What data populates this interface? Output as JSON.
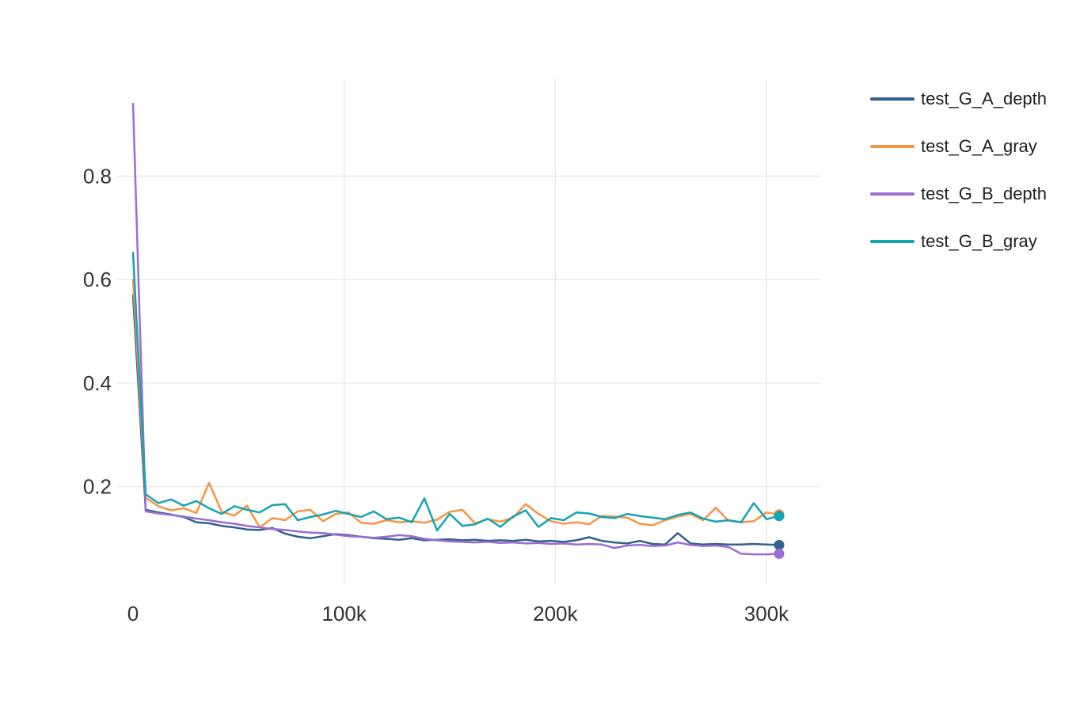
{
  "page": {
    "background": "#ffffff"
  },
  "colors": {
    "grid": "#e9e9e9",
    "tick_text": "#333333",
    "legend_text": "#1f1f1f"
  },
  "legend": {
    "position": "right",
    "items": [
      {
        "label": "test_G_A_depth",
        "color": "#31618c"
      },
      {
        "label": "test_G_A_gray",
        "color": "#f79444"
      },
      {
        "label": "test_G_B_depth",
        "color": "#9b6dd0"
      },
      {
        "label": "test_G_B_gray",
        "color": "#14a4b2"
      }
    ]
  },
  "axes": {
    "x_ticks": [
      {
        "label": "0",
        "value": 0
      },
      {
        "label": "100k",
        "value": 100000
      },
      {
        "label": "200k",
        "value": 200000
      },
      {
        "label": "300k",
        "value": 300000
      }
    ],
    "y_ticks": [
      {
        "label": "0.2",
        "value": 0.2
      },
      {
        "label": "0.4",
        "value": 0.4
      },
      {
        "label": "0.6",
        "value": 0.6
      },
      {
        "label": "0.8",
        "value": 0.8
      }
    ]
  },
  "chart_data": {
    "type": "line",
    "title": "",
    "xlabel": "",
    "ylabel": "",
    "grid": true,
    "legend_position": "right",
    "end_markers": true,
    "xlim": [
      -8000,
      326000
    ],
    "ylim": [
      0.01,
      0.99
    ],
    "x": [
      0,
      6000,
      12000,
      18000,
      24000,
      30000,
      36000,
      42000,
      48000,
      54000,
      60000,
      66000,
      72000,
      78000,
      84000,
      90000,
      96000,
      102000,
      108000,
      114000,
      120000,
      126000,
      132000,
      138000,
      144000,
      150000,
      156000,
      162000,
      168000,
      174000,
      180000,
      186000,
      192000,
      198000,
      204000,
      210000,
      216000,
      222000,
      228000,
      234000,
      240000,
      246000,
      252000,
      258000,
      264000,
      270000,
      276000,
      282000,
      288000,
      294000,
      300000,
      306000
    ],
    "series": [
      {
        "name": "test_G_A_depth",
        "color": "#31618c",
        "final_value": 0.087,
        "values": [
          0.57,
          0.155,
          0.15,
          0.146,
          0.141,
          0.131,
          0.129,
          0.124,
          0.121,
          0.117,
          0.116,
          0.12,
          0.109,
          0.103,
          0.1,
          0.104,
          0.108,
          0.106,
          0.103,
          0.1,
          0.099,
          0.097,
          0.1,
          0.096,
          0.097,
          0.098,
          0.096,
          0.097,
          0.095,
          0.096,
          0.095,
          0.097,
          0.094,
          0.095,
          0.093,
          0.096,
          0.102,
          0.095,
          0.092,
          0.09,
          0.095,
          0.089,
          0.088,
          0.11,
          0.09,
          0.088,
          0.089,
          0.088,
          0.088,
          0.089,
          0.088,
          0.087
        ]
      },
      {
        "name": "test_G_A_gray",
        "color": "#f79444",
        "final_value": 0.146,
        "values": [
          0.6,
          0.178,
          0.162,
          0.154,
          0.158,
          0.149,
          0.207,
          0.151,
          0.144,
          0.163,
          0.121,
          0.139,
          0.135,
          0.152,
          0.155,
          0.133,
          0.147,
          0.15,
          0.13,
          0.128,
          0.135,
          0.131,
          0.133,
          0.13,
          0.136,
          0.151,
          0.155,
          0.129,
          0.137,
          0.132,
          0.14,
          0.166,
          0.147,
          0.133,
          0.128,
          0.131,
          0.127,
          0.143,
          0.142,
          0.14,
          0.128,
          0.125,
          0.135,
          0.142,
          0.147,
          0.135,
          0.159,
          0.134,
          0.131,
          0.133,
          0.15,
          0.146
        ]
      },
      {
        "name": "test_G_B_depth",
        "color": "#9b6dd0",
        "final_value": 0.07,
        "values": [
          0.94,
          0.152,
          0.148,
          0.145,
          0.142,
          0.138,
          0.135,
          0.131,
          0.128,
          0.124,
          0.121,
          0.118,
          0.116,
          0.113,
          0.111,
          0.11,
          0.107,
          0.104,
          0.103,
          0.101,
          0.103,
          0.106,
          0.104,
          0.099,
          0.096,
          0.094,
          0.093,
          0.092,
          0.093,
          0.091,
          0.092,
          0.09,
          0.091,
          0.089,
          0.09,
          0.088,
          0.089,
          0.088,
          0.081,
          0.086,
          0.087,
          0.085,
          0.086,
          0.092,
          0.087,
          0.085,
          0.086,
          0.083,
          0.07,
          0.069,
          0.069,
          0.07
        ]
      },
      {
        "name": "test_G_B_gray",
        "color": "#14a4b2",
        "final_value": 0.143,
        "values": [
          0.652,
          0.185,
          0.168,
          0.175,
          0.163,
          0.172,
          0.158,
          0.147,
          0.162,
          0.155,
          0.15,
          0.164,
          0.166,
          0.135,
          0.141,
          0.146,
          0.153,
          0.147,
          0.141,
          0.152,
          0.137,
          0.14,
          0.131,
          0.177,
          0.115,
          0.147,
          0.124,
          0.127,
          0.138,
          0.122,
          0.142,
          0.154,
          0.122,
          0.139,
          0.135,
          0.15,
          0.148,
          0.141,
          0.139,
          0.147,
          0.143,
          0.14,
          0.137,
          0.145,
          0.15,
          0.138,
          0.132,
          0.135,
          0.131,
          0.168,
          0.137,
          0.143
        ]
      }
    ]
  }
}
